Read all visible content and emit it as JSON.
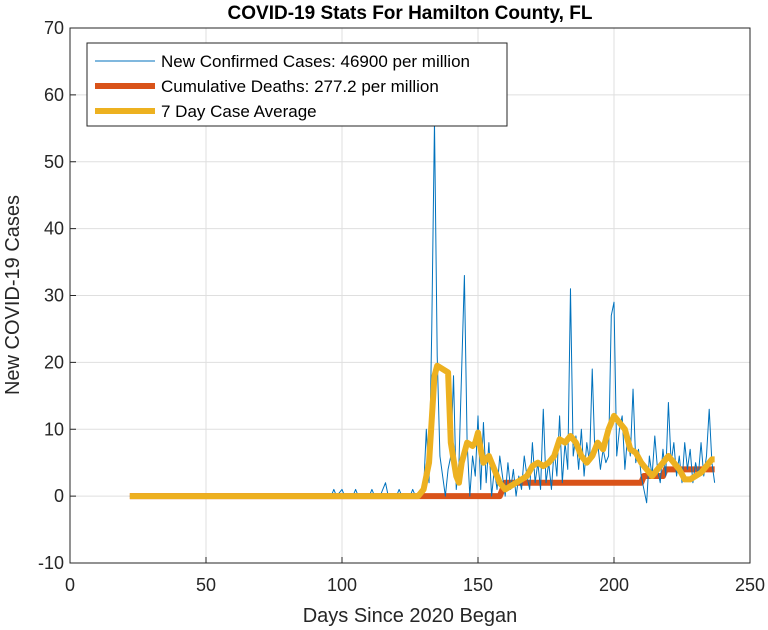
{
  "chart_data": {
    "type": "line",
    "title": "COVID-19 Stats For Hamilton County, FL",
    "xlabel": "Days Since 2020 Began",
    "ylabel": "New COVID-19 Cases",
    "xlim": [
      0,
      250
    ],
    "ylim": [
      -10,
      70
    ],
    "xticks": [
      0,
      50,
      100,
      150,
      200,
      250
    ],
    "yticks": [
      -10,
      0,
      10,
      20,
      30,
      40,
      50,
      60,
      70
    ],
    "grid": true,
    "legend_position": "top-left",
    "series": [
      {
        "name": "New Confirmed Cases: 46900 per million",
        "color": "#0072BD",
        "points": [
          [
            22,
            0
          ],
          [
            96,
            0
          ],
          [
            97,
            1
          ],
          [
            98,
            0
          ],
          [
            100,
            1
          ],
          [
            101,
            0
          ],
          [
            104,
            0
          ],
          [
            105,
            1
          ],
          [
            106,
            0
          ],
          [
            110,
            0
          ],
          [
            111,
            1
          ],
          [
            112,
            0
          ],
          [
            114,
            0
          ],
          [
            115,
            1
          ],
          [
            116,
            2
          ],
          [
            117,
            0
          ],
          [
            120,
            0
          ],
          [
            121,
            1
          ],
          [
            122,
            0
          ],
          [
            125,
            0
          ],
          [
            126,
            1
          ],
          [
            127,
            0
          ],
          [
            129,
            0
          ],
          [
            130,
            1
          ],
          [
            131,
            10
          ],
          [
            132,
            2
          ],
          [
            133,
            25
          ],
          [
            134,
            56
          ],
          [
            135,
            21
          ],
          [
            136,
            6
          ],
          [
            137,
            3
          ],
          [
            138,
            0
          ],
          [
            139,
            4
          ],
          [
            140,
            6
          ],
          [
            141,
            18
          ],
          [
            142,
            1
          ],
          [
            143,
            5
          ],
          [
            144,
            19
          ],
          [
            145,
            33
          ],
          [
            146,
            8
          ],
          [
            147,
            0
          ],
          [
            148,
            6
          ],
          [
            149,
            3
          ],
          [
            150,
            12
          ],
          [
            151,
            1
          ],
          [
            152,
            11
          ],
          [
            153,
            2
          ],
          [
            154,
            8
          ],
          [
            155,
            0
          ],
          [
            156,
            4
          ],
          [
            157,
            1
          ],
          [
            158,
            6
          ],
          [
            159,
            3
          ],
          [
            160,
            0
          ],
          [
            161,
            5
          ],
          [
            162,
            1
          ],
          [
            163,
            4
          ],
          [
            164,
            0
          ],
          [
            165,
            3
          ],
          [
            166,
            1
          ],
          [
            167,
            6
          ],
          [
            168,
            3
          ],
          [
            169,
            1
          ],
          [
            170,
            8
          ],
          [
            171,
            2
          ],
          [
            172,
            5
          ],
          [
            173,
            1
          ],
          [
            174,
            13
          ],
          [
            175,
            2
          ],
          [
            176,
            5
          ],
          [
            177,
            1
          ],
          [
            178,
            7
          ],
          [
            179,
            3
          ],
          [
            180,
            12
          ],
          [
            181,
            2
          ],
          [
            182,
            8
          ],
          [
            183,
            4
          ],
          [
            184,
            31
          ],
          [
            185,
            6
          ],
          [
            186,
            9
          ],
          [
            187,
            4
          ],
          [
            188,
            10
          ],
          [
            189,
            3
          ],
          [
            190,
            8
          ],
          [
            191,
            5
          ],
          [
            192,
            19
          ],
          [
            193,
            6
          ],
          [
            194,
            8
          ],
          [
            195,
            4
          ],
          [
            196,
            7
          ],
          [
            197,
            5
          ],
          [
            198,
            6
          ],
          [
            199,
            27
          ],
          [
            200,
            29
          ],
          [
            201,
            6
          ],
          [
            202,
            10
          ],
          [
            203,
            12
          ],
          [
            204,
            4
          ],
          [
            205,
            9
          ],
          [
            206,
            6
          ],
          [
            207,
            16
          ],
          [
            208,
            5
          ],
          [
            209,
            7
          ],
          [
            210,
            3
          ],
          [
            211,
            1
          ],
          [
            212,
            -1
          ],
          [
            213,
            6
          ],
          [
            214,
            3
          ],
          [
            215,
            9
          ],
          [
            216,
            4
          ],
          [
            217,
            2
          ],
          [
            218,
            7
          ],
          [
            219,
            3
          ],
          [
            220,
            14
          ],
          [
            221,
            5
          ],
          [
            222,
            8
          ],
          [
            223,
            3
          ],
          [
            224,
            6
          ],
          [
            225,
            2
          ],
          [
            226,
            8
          ],
          [
            227,
            4
          ],
          [
            228,
            7
          ],
          [
            229,
            2
          ],
          [
            230,
            5
          ],
          [
            231,
            3
          ],
          [
            232,
            8
          ],
          [
            233,
            3
          ],
          [
            234,
            6
          ],
          [
            235,
            13
          ],
          [
            236,
            5
          ],
          [
            237,
            2
          ]
        ]
      },
      {
        "name": "Cumulative Deaths: 277.2 per million",
        "color": "#D95319",
        "points": [
          [
            22,
            0
          ],
          [
            130,
            0
          ],
          [
            158,
            0
          ],
          [
            160,
            2
          ],
          [
            210,
            2
          ],
          [
            211,
            3
          ],
          [
            218,
            3
          ],
          [
            219,
            4
          ],
          [
            237,
            4
          ]
        ]
      },
      {
        "name": "7 Day Case Average",
        "color": "#EDB120",
        "points": [
          [
            22,
            0
          ],
          [
            128,
            0
          ],
          [
            130,
            1
          ],
          [
            132,
            5
          ],
          [
            134,
            18
          ],
          [
            135,
            19.5
          ],
          [
            137,
            19
          ],
          [
            139,
            18.5
          ],
          [
            140,
            8
          ],
          [
            142,
            3
          ],
          [
            143,
            2
          ],
          [
            144,
            5
          ],
          [
            146,
            8
          ],
          [
            148,
            7.5
          ],
          [
            149,
            8
          ],
          [
            150,
            9.5
          ],
          [
            151,
            7
          ],
          [
            152,
            5
          ],
          [
            154,
            6
          ],
          [
            156,
            4
          ],
          [
            158,
            2
          ],
          [
            160,
            1
          ],
          [
            162,
            1.5
          ],
          [
            164,
            2
          ],
          [
            166,
            2.5
          ],
          [
            168,
            3
          ],
          [
            170,
            4.5
          ],
          [
            172,
            5
          ],
          [
            174,
            4.5
          ],
          [
            176,
            5
          ],
          [
            178,
            6
          ],
          [
            180,
            8.5
          ],
          [
            182,
            8
          ],
          [
            184,
            9
          ],
          [
            186,
            8
          ],
          [
            188,
            6
          ],
          [
            190,
            5
          ],
          [
            192,
            6
          ],
          [
            194,
            8
          ],
          [
            196,
            7
          ],
          [
            198,
            10
          ],
          [
            200,
            12
          ],
          [
            202,
            11
          ],
          [
            204,
            10
          ],
          [
            206,
            7
          ],
          [
            208,
            6.5
          ],
          [
            210,
            5
          ],
          [
            212,
            4
          ],
          [
            214,
            3
          ],
          [
            216,
            4
          ],
          [
            218,
            5
          ],
          [
            220,
            6
          ],
          [
            222,
            5
          ],
          [
            224,
            4
          ],
          [
            226,
            2.5
          ],
          [
            228,
            2.5
          ],
          [
            230,
            3
          ],
          [
            232,
            3.5
          ],
          [
            234,
            4.5
          ],
          [
            236,
            5.5
          ],
          [
            237,
            5.5
          ]
        ]
      }
    ]
  }
}
